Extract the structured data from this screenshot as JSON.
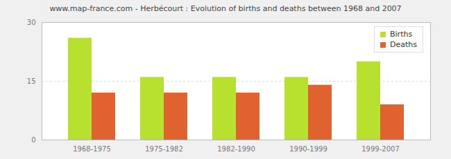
{
  "chart_data": {
    "type": "bar",
    "title": "www.map-france.com - Herbécourt : Evolution of births and deaths between 1968 and 2007",
    "categories": [
      "1968-1975",
      "1975-1982",
      "1982-1990",
      "1990-1999",
      "1999-2007"
    ],
    "series": [
      {
        "name": "Births",
        "color": "#b8e02e",
        "values": [
          26,
          16,
          16,
          16,
          20
        ]
      },
      {
        "name": "Deaths",
        "color": "#e0622e",
        "values": [
          12,
          12,
          12,
          14,
          9
        ]
      }
    ],
    "ylim": [
      0,
      30
    ],
    "yticks": [
      0,
      15,
      30
    ],
    "grid": true,
    "legend": "top-right"
  }
}
